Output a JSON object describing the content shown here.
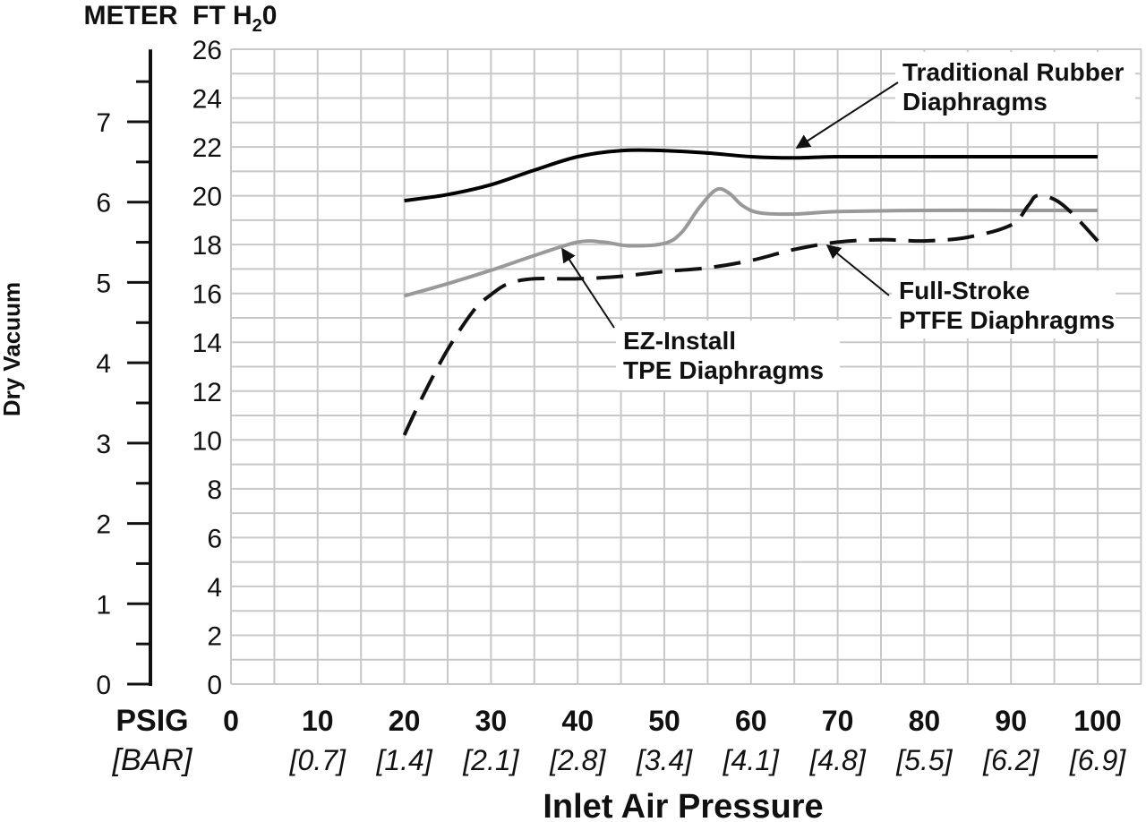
{
  "chart_data": {
    "type": "line",
    "xlabel": "Inlet Air Pressure",
    "ylabel": "Dry Vacuum",
    "units": {
      "meter": "METER",
      "ft_pre": "FT H",
      "ft_sub": "2",
      "ft_post": "0",
      "psig": "PSIG",
      "bar": "[BAR]"
    },
    "x_ticks": [
      "0",
      "10",
      "20",
      "30",
      "40",
      "50",
      "60",
      "70",
      "80",
      "90",
      "100"
    ],
    "bar_ticks": [
      "",
      "[0.7]",
      "[1.4]",
      "[2.1]",
      "[2.8]",
      "[3.4]",
      "[4.1]",
      "[4.8]",
      "[5.5]",
      "[6.2]",
      "[6.9]"
    ],
    "ft_ticks": [
      "0",
      "2",
      "4",
      "6",
      "8",
      "10",
      "12",
      "14",
      "16",
      "18",
      "20",
      "22",
      "24",
      "26"
    ],
    "meter_ticks": [
      "0",
      "1",
      "2",
      "3",
      "4",
      "5",
      "6",
      "7"
    ],
    "xlim": [
      0,
      100
    ],
    "ylim_ft": [
      0,
      26
    ],
    "ylim_meter": [
      0,
      7.9
    ],
    "grid": true,
    "series": [
      {
        "name": "Traditional Rubber Diaphragms",
        "label_lines": [
          "Traditional Rubber",
          "Diaphragms"
        ],
        "color": "#000000",
        "style": "solid",
        "points": [
          [
            20,
            19.8
          ],
          [
            25,
            20.05
          ],
          [
            30,
            20.45
          ],
          [
            35,
            21.05
          ],
          [
            40,
            21.6
          ],
          [
            45,
            21.85
          ],
          [
            50,
            21.85
          ],
          [
            55,
            21.75
          ],
          [
            60,
            21.6
          ],
          [
            65,
            21.55
          ],
          [
            70,
            21.6
          ],
          [
            80,
            21.6
          ],
          [
            90,
            21.6
          ],
          [
            100,
            21.6
          ]
        ]
      },
      {
        "name": "EZ-Install TPE Diaphragms",
        "label_lines": [
          "EZ-Install",
          "TPE Diaphragms"
        ],
        "color": "#999999",
        "style": "solid",
        "points": [
          [
            20,
            15.9
          ],
          [
            25,
            16.4
          ],
          [
            30,
            16.95
          ],
          [
            35,
            17.55
          ],
          [
            40,
            18.1
          ],
          [
            43,
            18.1
          ],
          [
            46,
            17.95
          ],
          [
            50,
            18.05
          ],
          [
            52,
            18.5
          ],
          [
            54,
            19.5
          ],
          [
            56,
            20.25
          ],
          [
            57.5,
            20.1
          ],
          [
            59,
            19.6
          ],
          [
            61,
            19.3
          ],
          [
            65,
            19.25
          ],
          [
            70,
            19.35
          ],
          [
            80,
            19.4
          ],
          [
            90,
            19.4
          ],
          [
            100,
            19.4
          ]
        ]
      },
      {
        "name": "Full-Stroke PTFE Diaphragms",
        "label_lines": [
          "Full-Stroke",
          "PTFE Diaphragms"
        ],
        "color": "#111111",
        "style": "dashed",
        "points": [
          [
            20,
            10.2
          ],
          [
            22,
            11.7
          ],
          [
            25,
            13.7
          ],
          [
            28,
            15.3
          ],
          [
            30,
            15.95
          ],
          [
            32,
            16.4
          ],
          [
            35,
            16.6
          ],
          [
            40,
            16.6
          ],
          [
            45,
            16.7
          ],
          [
            50,
            16.9
          ],
          [
            55,
            17.05
          ],
          [
            60,
            17.35
          ],
          [
            65,
            17.8
          ],
          [
            70,
            18.1
          ],
          [
            75,
            18.2
          ],
          [
            80,
            18.15
          ],
          [
            85,
            18.3
          ],
          [
            90,
            18.8
          ],
          [
            92,
            19.6
          ],
          [
            93,
            20.0
          ],
          [
            95,
            19.85
          ],
          [
            97,
            19.3
          ],
          [
            100,
            18.15
          ]
        ]
      }
    ]
  }
}
